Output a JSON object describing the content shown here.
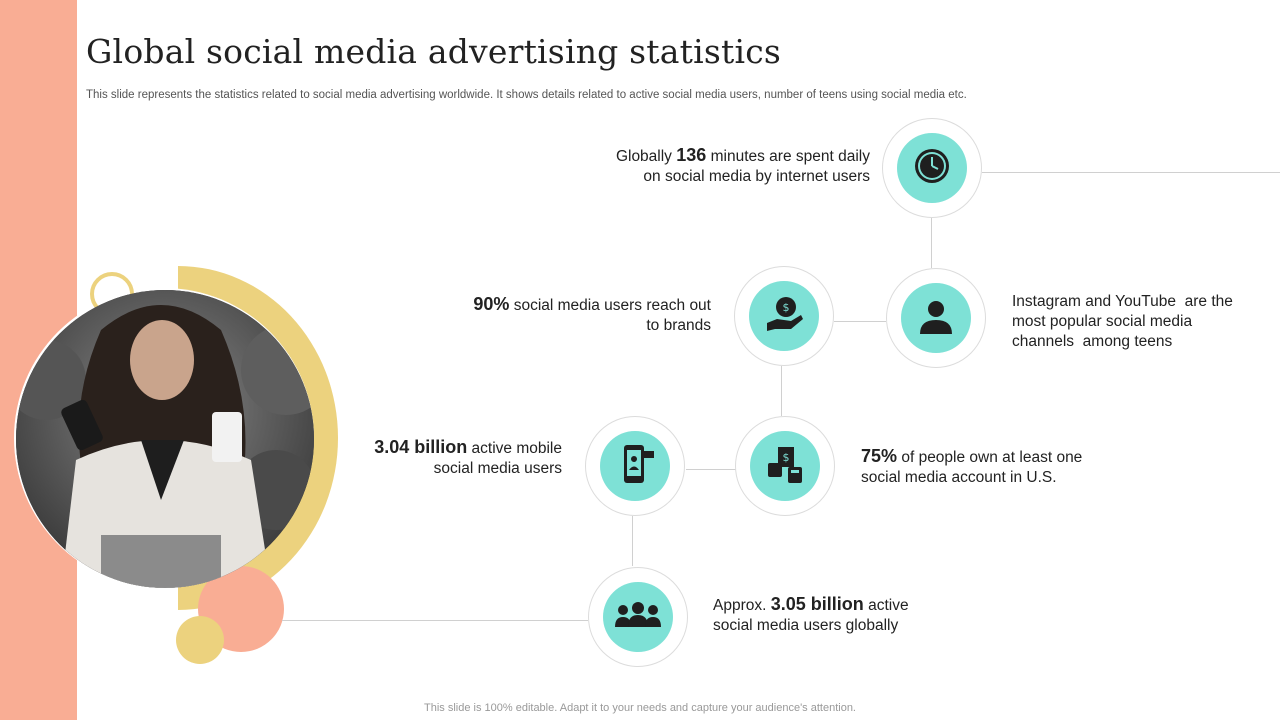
{
  "slide": {
    "title": "Global social media advertising statistics",
    "subtitle": "This slide represents the statistics related to social media advertising worldwide. It shows details related to active social media users, number of teens using social media etc.",
    "footer": "This slide is 100% editable. Adapt it to your needs and capture your audience's attention."
  },
  "stats": {
    "minutes": {
      "pre": "Globally ",
      "value": "136",
      "post": " minutes are spent daily",
      "line2": "on social media by internet users",
      "icon": "clock-icon"
    },
    "teens": {
      "line1": "Instagram and YouTube  are the",
      "line2": "most popular social media",
      "line3": "channels  among teens",
      "icon": "person-icon"
    },
    "brands": {
      "value": "90%",
      "post": " social media users reach out",
      "line2": "to brands",
      "icon": "money-hand-icon"
    },
    "account": {
      "value": "75%",
      "post": " of people own at least one",
      "line2": "social media account in U.S.",
      "icon": "finance-icon"
    },
    "mobile": {
      "value": "3.04 billion",
      "post": " active mobile",
      "line2": "social media users",
      "icon": "smartphone-icon"
    },
    "global": {
      "pre": "Approx. ",
      "value": "3.05 billion",
      "post": " active",
      "line2": "social media users globally",
      "icon": "group-icon"
    }
  },
  "colors": {
    "accent_teal": "#7ee1d6",
    "peach": "#f9ad94",
    "yellow": "#ecd27e"
  }
}
